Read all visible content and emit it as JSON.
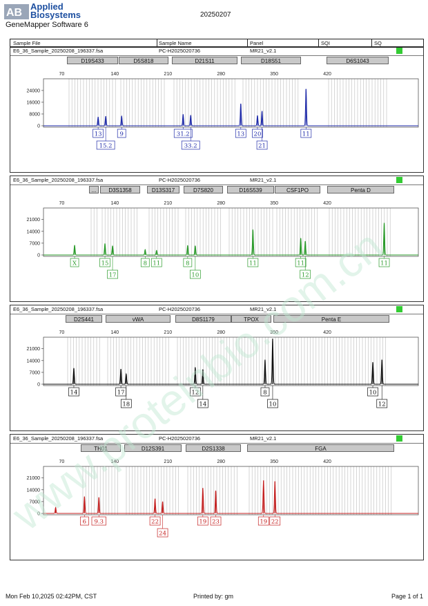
{
  "header": {
    "company_line1": "Applied",
    "company_line2": "Biosystems",
    "software": "GeneMapper Software 6",
    "date_title": "20250207"
  },
  "table_header": {
    "sample_file": "Sample File",
    "sample_name": "Sample Name",
    "panel": "Panel",
    "sqi": "SQI",
    "sq": "SQ"
  },
  "size_ticks": [
    "70",
    "140",
    "210",
    "280",
    "350",
    "420"
  ],
  "colors": {
    "blue": "#1e2aa8",
    "green": "#2a9a2a",
    "black": "#111111",
    "red": "#c42020",
    "sq_ok": "#33cc33",
    "watermark": "#bfe6d0"
  },
  "watermark_text": "www.proteinbio.com.cn",
  "panels": [
    {
      "sample_file": "E6_36_Sample_20250208_196337.fsa",
      "sample_name": "PC-H2025020736",
      "panel": "MR21_v2.1",
      "dye": "blue",
      "y_ticks": [
        "24000",
        "16000",
        "8000",
        "0"
      ],
      "y_tick_values": [
        24000,
        16000,
        8000,
        0
      ],
      "y_max": 31000,
      "loci": [
        "D19S433",
        "D5S818",
        "D21S11",
        "D18S51",
        "D6S1043"
      ],
      "peaks": [
        {
          "size": 118,
          "height": 6000
        },
        {
          "size": 128,
          "height": 6500
        },
        {
          "size": 149,
          "height": 6500
        },
        {
          "size": 230,
          "height": 7800
        },
        {
          "size": 240,
          "height": 7200
        },
        {
          "size": 306,
          "height": 15000
        },
        {
          "size": 328,
          "height": 7000
        },
        {
          "size": 334,
          "height": 10000
        },
        {
          "size": 392,
          "height": 25000
        }
      ],
      "alleles": [
        {
          "size": 118,
          "label": "13",
          "row": 0
        },
        {
          "size": 128,
          "label": "15.2",
          "row": 1
        },
        {
          "size": 149,
          "label": "9",
          "row": 0
        },
        {
          "size": 230,
          "label": "31.2",
          "row": 0
        },
        {
          "size": 240,
          "label": "33.2",
          "row": 1
        },
        {
          "size": 306,
          "label": "13",
          "row": 0
        },
        {
          "size": 328,
          "label": "20",
          "row": 0
        },
        {
          "size": 334,
          "label": "21",
          "row": 1
        },
        {
          "size": 392,
          "label": "11",
          "row": 0
        }
      ]
    },
    {
      "sample_file": "E6_36_Sample_20250208_196337.fsa",
      "sample_name": "PC-H2025020736",
      "panel": "MR21_v2.1",
      "dye": "green",
      "y_ticks": [
        "21000",
        "14000",
        "7000",
        "0"
      ],
      "y_tick_values": [
        21000,
        14000,
        7000,
        0
      ],
      "y_max": 27000,
      "loci": [
        "...",
        "D3S1358",
        "D13S317",
        "D7S820",
        "D16S539",
        "CSF1PO",
        "Penta D"
      ],
      "peaks": [
        {
          "size": 87,
          "height": 5800
        },
        {
          "size": 127,
          "height": 6800
        },
        {
          "size": 137,
          "height": 5500
        },
        {
          "size": 180,
          "height": 3200
        },
        {
          "size": 195,
          "height": 2700
        },
        {
          "size": 236,
          "height": 5700
        },
        {
          "size": 246,
          "height": 5500
        },
        {
          "size": 322,
          "height": 15000
        },
        {
          "size": 385,
          "height": 10000
        },
        {
          "size": 391,
          "height": 8200
        },
        {
          "size": 495,
          "height": 19000
        }
      ],
      "alleles": [
        {
          "size": 87,
          "label": "X",
          "row": 0
        },
        {
          "size": 127,
          "label": "15",
          "row": 0
        },
        {
          "size": 137,
          "label": "17",
          "row": 1
        },
        {
          "size": 180,
          "label": "8",
          "row": 0
        },
        {
          "size": 195,
          "label": "11",
          "row": 0
        },
        {
          "size": 236,
          "label": "8",
          "row": 0
        },
        {
          "size": 246,
          "label": "10",
          "row": 1
        },
        {
          "size": 322,
          "label": "11",
          "row": 0
        },
        {
          "size": 385,
          "label": "11",
          "row": 0
        },
        {
          "size": 391,
          "label": "12",
          "row": 1
        },
        {
          "size": 495,
          "label": "11",
          "row": 0
        }
      ]
    },
    {
      "sample_file": "E6_36_Sample_20250208_196337.fsa",
      "sample_name": "PC-H2025020736",
      "panel": "MR21_v2.1",
      "dye": "black",
      "y_ticks": [
        "21000",
        "14000",
        "7000",
        "0"
      ],
      "y_tick_values": [
        21000,
        14000,
        7000,
        0
      ],
      "y_max": 27000,
      "loci": [
        "D2S441",
        "vWA",
        "D8S1179",
        "TPOX",
        "Penta E"
      ],
      "peaks": [
        {
          "size": 86,
          "height": 9500
        },
        {
          "size": 148,
          "height": 9000
        },
        {
          "size": 155,
          "height": 6000
        },
        {
          "size": 246,
          "height": 10000
        },
        {
          "size": 256,
          "height": 8700
        },
        {
          "size": 338,
          "height": 14500
        },
        {
          "size": 348,
          "height": 27000
        },
        {
          "size": 480,
          "height": 13000
        },
        {
          "size": 492,
          "height": 14500
        }
      ],
      "alleles": [
        {
          "size": 86,
          "label": "14",
          "row": 0
        },
        {
          "size": 148,
          "label": "17",
          "row": 0
        },
        {
          "size": 155,
          "label": "18",
          "row": 1
        },
        {
          "size": 246,
          "label": "12",
          "row": 0
        },
        {
          "size": 256,
          "label": "14",
          "row": 1
        },
        {
          "size": 338,
          "label": "8",
          "row": 0
        },
        {
          "size": 348,
          "label": "10",
          "row": 1
        },
        {
          "size": 480,
          "label": "10",
          "row": 0
        },
        {
          "size": 492,
          "label": "12",
          "row": 1
        }
      ]
    },
    {
      "sample_file": "E6_36_Sample_20250208_196337.fsa",
      "sample_name": "PC-H2025020736",
      "panel": "MR21_v2.1",
      "dye": "red",
      "y_ticks": [
        "21000",
        "14000",
        "7000",
        "0"
      ],
      "y_tick_values": [
        21000,
        14000,
        7000,
        0
      ],
      "y_max": 27000,
      "loci": [
        "TH01",
        "D12S391",
        "D2S1338",
        "FGA"
      ],
      "peaks": [
        {
          "size": 62,
          "height": 3500
        },
        {
          "size": 100,
          "height": 10000
        },
        {
          "size": 119,
          "height": 9500
        },
        {
          "size": 193,
          "height": 8700
        },
        {
          "size": 203,
          "height": 7000
        },
        {
          "size": 256,
          "height": 15000
        },
        {
          "size": 273,
          "height": 13500
        },
        {
          "size": 336,
          "height": 19500
        },
        {
          "size": 351,
          "height": 19000
        }
      ],
      "alleles": [
        {
          "size": 100,
          "label": "6",
          "row": 0
        },
        {
          "size": 119,
          "label": "9.3",
          "row": 0
        },
        {
          "size": 193,
          "label": "22",
          "row": 0
        },
        {
          "size": 203,
          "label": "24",
          "row": 1
        },
        {
          "size": 256,
          "label": "19",
          "row": 0
        },
        {
          "size": 273,
          "label": "23",
          "row": 0
        },
        {
          "size": 336,
          "label": "19",
          "row": 0
        },
        {
          "size": 351,
          "label": "22",
          "row": 0
        }
      ]
    }
  ],
  "footer": {
    "printed_at": "Mon Feb 10,2025 02:42PM, CST",
    "printed_by": "Printed by: gm",
    "page": "Page 1 of 1"
  }
}
